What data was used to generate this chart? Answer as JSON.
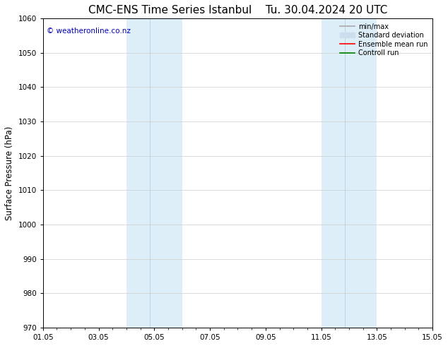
{
  "title_left": "CMC-ENS Time Series Istanbul",
  "title_right": "Tu. 30.04.2024 20 UTC",
  "ylabel": "Surface Pressure (hPa)",
  "ylim": [
    970,
    1060
  ],
  "yticks": [
    970,
    980,
    990,
    1000,
    1010,
    1020,
    1030,
    1040,
    1050,
    1060
  ],
  "xlim_start": 0.0,
  "xlim_end": 14.0,
  "xtick_labels": [
    "01.05",
    "03.05",
    "05.05",
    "07.05",
    "09.05",
    "11.05",
    "13.05",
    "15.05"
  ],
  "xtick_positions": [
    0,
    2,
    4,
    6,
    8,
    10,
    12,
    14
  ],
  "shaded_bands": [
    {
      "x_start": 3.0,
      "x_end": 3.85,
      "color": "#ddeef8"
    },
    {
      "x_start": 3.85,
      "x_end": 5.0,
      "color": "#ddeef8"
    },
    {
      "x_start": 10.0,
      "x_end": 10.85,
      "color": "#ddeef8"
    },
    {
      "x_start": 10.85,
      "x_end": 12.0,
      "color": "#ddeef8"
    }
  ],
  "copyright_text": "© weatheronline.co.nz",
  "copyright_color": "#0000bb",
  "legend_items": [
    {
      "label": "min/max",
      "color": "#aaaaaa",
      "linestyle": "-",
      "linewidth": 1.2
    },
    {
      "label": "Standard deviation",
      "color": "#ccdded",
      "linestyle": "-",
      "linewidth": 5
    },
    {
      "label": "Ensemble mean run",
      "color": "#ff0000",
      "linestyle": "-",
      "linewidth": 1.2
    },
    {
      "label": "Controll run",
      "color": "#008000",
      "linestyle": "-",
      "linewidth": 1.2
    }
  ],
  "bg_color": "#ffffff",
  "grid_color": "#cccccc",
  "title_fontsize": 11,
  "label_fontsize": 8.5,
  "tick_fontsize": 7.5
}
